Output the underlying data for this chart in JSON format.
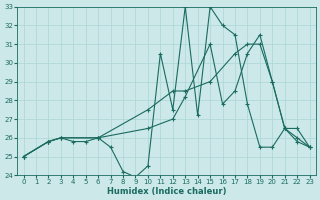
{
  "xlabel": "Humidex (Indice chaleur)",
  "xlim": [
    -0.5,
    23.5
  ],
  "ylim": [
    24,
    33
  ],
  "xticks": [
    0,
    1,
    2,
    3,
    4,
    5,
    6,
    7,
    8,
    9,
    10,
    11,
    12,
    13,
    14,
    15,
    16,
    17,
    18,
    19,
    20,
    21,
    22,
    23
  ],
  "yticks": [
    24,
    25,
    26,
    27,
    28,
    29,
    30,
    31,
    32,
    33
  ],
  "bg_color": "#cce8e8",
  "line_color": "#1a6b60",
  "grid_color": "#b0d8d8",
  "series": [
    {
      "x": [
        0,
        2,
        3,
        4,
        5,
        6,
        7,
        8,
        9,
        10,
        11,
        12,
        13,
        14,
        15,
        16,
        17,
        18,
        19,
        20,
        21,
        22,
        23
      ],
      "y": [
        25,
        25.8,
        26,
        25.8,
        25.8,
        26,
        25.5,
        24.2,
        23.9,
        24.5,
        30.5,
        27.5,
        33,
        27.2,
        33,
        32,
        31.5,
        27.8,
        25.5,
        25.5,
        26.5,
        25.8,
        25.5
      ]
    },
    {
      "x": [
        0,
        2,
        3,
        6,
        10,
        12,
        13,
        15,
        16,
        17,
        18,
        19,
        20,
        21,
        22,
        23
      ],
      "y": [
        25,
        25.8,
        26,
        26,
        26.5,
        27,
        28.2,
        31,
        27.8,
        28.5,
        30.5,
        31.5,
        29,
        26.5,
        26.5,
        25.5
      ]
    },
    {
      "x": [
        0,
        2,
        3,
        6,
        10,
        12,
        13,
        15,
        17,
        18,
        19,
        20,
        21,
        22,
        23
      ],
      "y": [
        25,
        25.8,
        26,
        26,
        27.5,
        28.5,
        28.5,
        29,
        30.5,
        31,
        31,
        29,
        26.5,
        26,
        25.5
      ]
    }
  ]
}
